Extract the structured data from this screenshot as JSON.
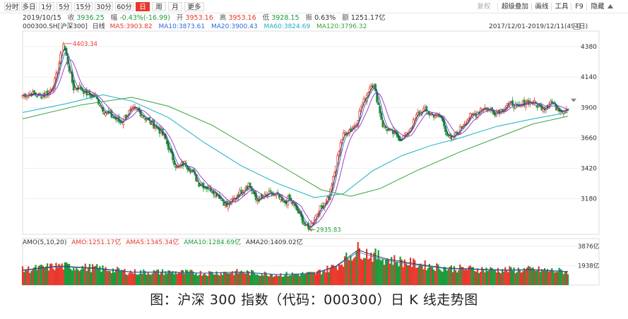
{
  "toolbar": {
    "periods": [
      "分时",
      "多日",
      "1分",
      "5分",
      "15分",
      "30分",
      "60分",
      "日",
      "周",
      "月",
      "更多"
    ],
    "active_period": "日",
    "tools": [
      "复权",
      "超级叠加",
      "画线",
      "工具",
      "F9",
      "隐藏"
    ]
  },
  "quote": {
    "date": "2019/10/15",
    "close_label": "收",
    "close": "3936.25",
    "change_label": "幅",
    "change": "-0.43%(-16.99)",
    "open_label": "开",
    "open": "3953.16",
    "high_label": "高",
    "high": "3953.16",
    "low_label": "低",
    "low": "3928.15",
    "amp_label": "振",
    "amp": "0.63%",
    "amount_label": "额",
    "amount": "1251.17亿"
  },
  "indicators": {
    "code": "000300.SH",
    "name": "[沪深300]",
    "period": "日线",
    "ma5": "MA5:3903.82",
    "ma10": "MA10:3873.61",
    "ma20": "MA20:3900.43",
    "ma60": "MA60:3824.69",
    "ma120": "MA120:3796.32",
    "range": "2017/12/01-2019/12/11(494日)"
  },
  "amo": {
    "label": "AMO(5,10,20)",
    "amo": "AMO:1251.17亿",
    "ama5": "AMA5:1345.34亿",
    "ama10": "AMA10:1284.69亿",
    "ama20": "AMA20:1409.02亿",
    "ticks": [
      "3876亿",
      "1938亿"
    ]
  },
  "colors": {
    "up": "#e8382c",
    "down": "#1c9a3c",
    "ma5": "#333333",
    "ma10": "#2b6cd6",
    "ma20": "#9b2fae",
    "ma60": "#17b0c0",
    "ma120": "#3aa33a"
  },
  "chart_data": {
    "type": "candlestick",
    "title": "沪深300 日K线",
    "x_range": [
      "2017/12/01",
      "2019/12/11"
    ],
    "y_ticks": [
      4380,
      4140,
      3900,
      3660,
      3420,
      3180
    ],
    "ylim": [
      2900,
      4480
    ],
    "annotations": [
      {
        "text": "4403.34",
        "kind": "high"
      },
      {
        "text": "2935.83",
        "kind": "low"
      }
    ],
    "price_path": [
      [
        0,
        3995
      ],
      [
        12,
        4010
      ],
      [
        25,
        3990
      ],
      [
        37,
        4025
      ],
      [
        45,
        4120
      ],
      [
        52,
        4300
      ],
      [
        56,
        4403
      ],
      [
        62,
        4250
      ],
      [
        70,
        4050
      ],
      [
        78,
        4060
      ],
      [
        88,
        4010
      ],
      [
        100,
        3980
      ],
      [
        112,
        3870
      ],
      [
        125,
        3820
      ],
      [
        135,
        3780
      ],
      [
        145,
        3860
      ],
      [
        155,
        3890
      ],
      [
        165,
        3840
      ],
      [
        175,
        3780
      ],
      [
        185,
        3740
      ],
      [
        195,
        3660
      ],
      [
        205,
        3510
      ],
      [
        212,
        3420
      ],
      [
        222,
        3460
      ],
      [
        232,
        3400
      ],
      [
        242,
        3300
      ],
      [
        250,
        3280
      ],
      [
        260,
        3250
      ],
      [
        270,
        3200
      ],
      [
        280,
        3120
      ],
      [
        290,
        3180
      ],
      [
        300,
        3240
      ],
      [
        310,
        3300
      ],
      [
        320,
        3170
      ],
      [
        330,
        3190
      ],
      [
        340,
        3220
      ],
      [
        350,
        3200
      ],
      [
        358,
        3140
      ],
      [
        365,
        3180
      ],
      [
        372,
        3130
      ],
      [
        380,
        3050
      ],
      [
        386,
        2990
      ],
      [
        392,
        2936
      ],
      [
        398,
        3000
      ],
      [
        405,
        3080
      ],
      [
        412,
        3130
      ],
      [
        420,
        3200
      ],
      [
        428,
        3380
      ],
      [
        436,
        3630
      ],
      [
        442,
        3700
      ],
      [
        450,
        3730
      ],
      [
        458,
        3780
      ],
      [
        464,
        3900
      ],
      [
        472,
        4000
      ],
      [
        478,
        4090
      ],
      [
        482,
        4060
      ],
      [
        488,
        3920
      ],
      [
        494,
        3760
      ],
      [
        502,
        3720
      ],
      [
        510,
        3690
      ],
      [
        518,
        3650
      ],
      [
        526,
        3680
      ],
      [
        534,
        3760
      ],
      [
        542,
        3850
      ],
      [
        550,
        3880
      ],
      [
        558,
        3850
      ],
      [
        566,
        3840
      ],
      [
        574,
        3820
      ],
      [
        582,
        3700
      ],
      [
        588,
        3640
      ],
      [
        596,
        3700
      ],
      [
        606,
        3780
      ],
      [
        614,
        3830
      ],
      [
        622,
        3850
      ],
      [
        630,
        3900
      ],
      [
        638,
        3890
      ],
      [
        648,
        3860
      ],
      [
        656,
        3880
      ],
      [
        664,
        3920
      ],
      [
        672,
        3930
      ],
      [
        680,
        3890
      ],
      [
        690,
        3950
      ],
      [
        700,
        3940
      ],
      [
        708,
        3910
      ],
      [
        716,
        3900
      ],
      [
        724,
        3950
      ],
      [
        732,
        3900
      ],
      [
        740,
        3880
      ],
      [
        748,
        3900
      ]
    ],
    "ma60_path": [
      [
        0,
        3860
      ],
      [
        60,
        3930
      ],
      [
        110,
        4000
      ],
      [
        150,
        3950
      ],
      [
        200,
        3820
      ],
      [
        250,
        3620
      ],
      [
        300,
        3440
      ],
      [
        350,
        3300
      ],
      [
        400,
        3190
      ],
      [
        440,
        3220
      ],
      [
        480,
        3400
      ],
      [
        520,
        3520
      ],
      [
        560,
        3600
      ],
      [
        600,
        3660
      ],
      [
        650,
        3750
      ],
      [
        700,
        3810
      ],
      [
        748,
        3860
      ]
    ],
    "ma120_path": [
      [
        0,
        3810
      ],
      [
        80,
        3920
      ],
      [
        150,
        3980
      ],
      [
        200,
        3910
      ],
      [
        260,
        3760
      ],
      [
        310,
        3590
      ],
      [
        360,
        3420
      ],
      [
        410,
        3250
      ],
      [
        450,
        3200
      ],
      [
        490,
        3260
      ],
      [
        540,
        3400
      ],
      [
        600,
        3550
      ],
      [
        650,
        3660
      ],
      [
        700,
        3770
      ],
      [
        748,
        3830
      ]
    ],
    "amo_max": 3876,
    "amo_path": [
      [
        0,
        1500
      ],
      [
        50,
        1900
      ],
      [
        100,
        1700
      ],
      [
        150,
        1300
      ],
      [
        200,
        1300
      ],
      [
        250,
        1200
      ],
      [
        300,
        1300
      ],
      [
        350,
        1050
      ],
      [
        400,
        1150
      ],
      [
        430,
        1900
      ],
      [
        460,
        3500
      ],
      [
        480,
        3000
      ],
      [
        500,
        2600
      ],
      [
        540,
        2100
      ],
      [
        580,
        1700
      ],
      [
        620,
        1600
      ],
      [
        660,
        1500
      ],
      [
        700,
        1550
      ],
      [
        748,
        1350
      ]
    ]
  }
}
